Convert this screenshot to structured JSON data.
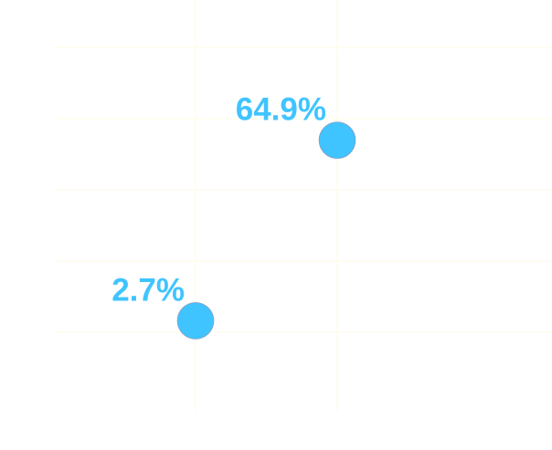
{
  "chart_data": {
    "type": "scatter",
    "title": "",
    "xlabel": "",
    "ylabel": "",
    "ylim": [
      0,
      100
    ],
    "grid": true,
    "legend": "none",
    "points": [
      {
        "x": 0,
        "y": 2.7,
        "label": "2.7%"
      },
      {
        "x": 1,
        "y": 64.9,
        "label": "64.9%"
      }
    ],
    "colors": {
      "point": "#40c4ff",
      "label": "#40c4ff",
      "grid": "#fffbe6"
    }
  }
}
